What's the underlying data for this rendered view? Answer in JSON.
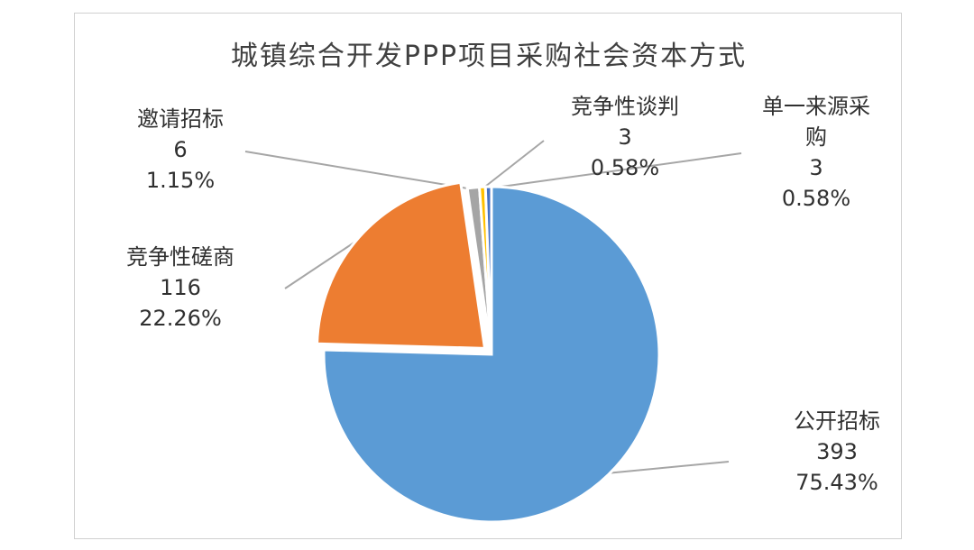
{
  "chart_data": {
    "type": "pie",
    "title": "城镇综合开发PPP项目采购社会资本方式",
    "slices": [
      {
        "label": "公开招标",
        "value": 393,
        "percent": "75.43%",
        "color": "#5B9BD5"
      },
      {
        "label": "竞争性磋商",
        "value": 116,
        "percent": "22.26%",
        "color": "#ED7D31"
      },
      {
        "label": "邀请招标",
        "value": 6,
        "percent": "1.15%",
        "color": "#A5A5A5"
      },
      {
        "label": "竞争性谈判",
        "value": 3,
        "percent": "0.58%",
        "color": "#FFC000"
      },
      {
        "label": "单一来源采购",
        "value": 3,
        "percent": "0.58%",
        "color": "#4472C4"
      }
    ],
    "legend": "none"
  }
}
